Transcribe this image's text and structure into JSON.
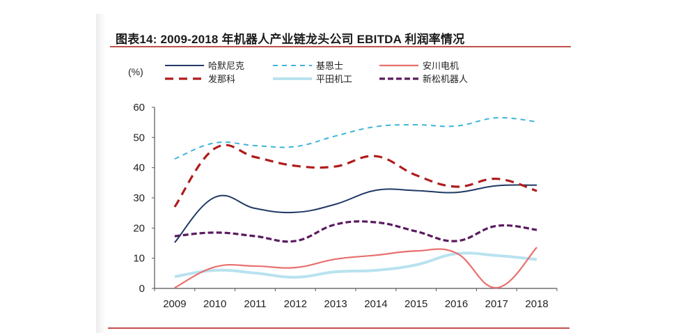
{
  "title": "图表14:   2009-2018 年机器人产业链龙头公司 EBITDA 利润率情况",
  "chart_data": {
    "type": "line",
    "title": "2009-2018 年机器人产业链龙头公司 EBITDA 利润率情况",
    "figure_label": "图表14:",
    "xlabel": "",
    "ylabel": "(%)",
    "ylim": [
      0,
      60
    ],
    "yticks": [
      0,
      10,
      20,
      30,
      40,
      50,
      60
    ],
    "grid": false,
    "legend_position": "top",
    "categories": [
      "2009",
      "2010",
      "2011",
      "2012",
      "2013",
      "2014",
      "2015",
      "2016",
      "2017",
      "2018"
    ],
    "series": [
      {
        "name": "哈默尼克",
        "color": "#1f3864",
        "style": "solid",
        "values": [
          15.2,
          30.2,
          26.5,
          25.2,
          27.9,
          32.5,
          32.4,
          31.8,
          34.0,
          34.2
        ]
      },
      {
        "name": "基恩士",
        "color": "#3cb4d8",
        "style": "dashed",
        "values": [
          42.9,
          48.2,
          47.3,
          47.0,
          50.5,
          53.6,
          54.2,
          53.8,
          56.5,
          55.2
        ]
      },
      {
        "name": "安川电机",
        "color": "#e8706e",
        "style": "solid",
        "values": [
          0.2,
          7.1,
          7.4,
          6.9,
          9.7,
          11.0,
          12.4,
          11.7,
          0.2,
          13.6
        ]
      },
      {
        "name": "发那科",
        "color": "#b01c1c",
        "style": "dashed",
        "values": [
          27.0,
          46.4,
          43.5,
          40.6,
          40.4,
          43.8,
          37.5,
          33.7,
          36.3,
          32.3
        ]
      },
      {
        "name": "平田机工",
        "color": "#b9e2ef",
        "style": "solid",
        "values": [
          3.9,
          6.0,
          5.1,
          3.7,
          5.5,
          6.0,
          7.8,
          11.5,
          10.9,
          9.6
        ]
      },
      {
        "name": "新松机器人",
        "color": "#5a1a5e",
        "style": "dashed",
        "values": [
          17.3,
          18.5,
          17.3,
          15.7,
          21.2,
          21.9,
          18.9,
          15.7,
          20.7,
          19.4
        ]
      }
    ]
  }
}
